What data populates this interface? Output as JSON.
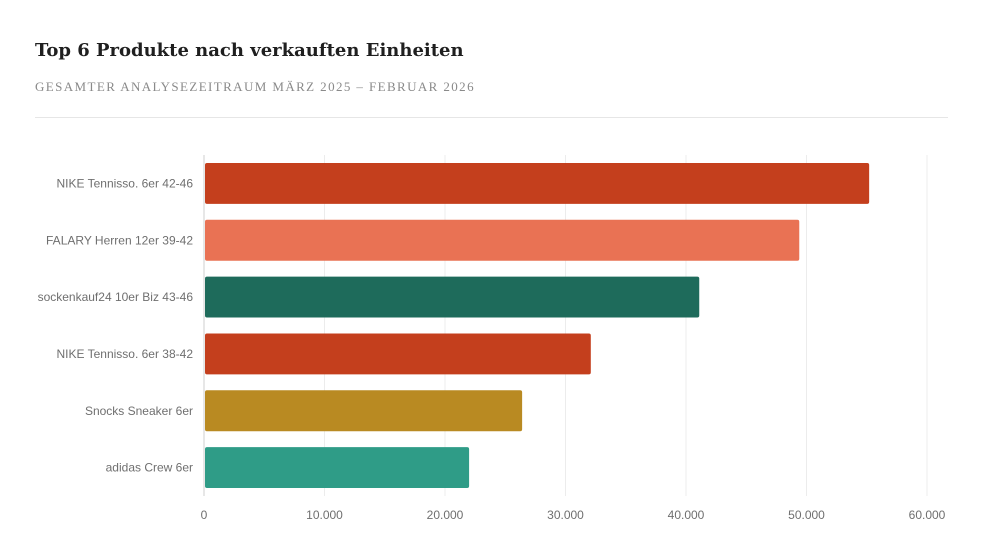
{
  "header": {
    "title": "Top 6 Produkte nach verkauften Einheiten",
    "subtitle": "Gesamter Analysezeitraum März 2025 – Februar 2026"
  },
  "chart_data": {
    "type": "bar",
    "orientation": "horizontal",
    "title": "Top 6 Produkte nach verkauften Einheiten",
    "subtitle": "Gesamter Analysezeitraum März 2025 – Februar 2026",
    "categories": [
      "NIKE Tennisso. 6er 42-46",
      "FALARY Herren 12er 39-42",
      "sockenkauf24 10er Biz 43-46",
      "NIKE Tennisso. 6er 38-42",
      "Snocks Sneaker 6er",
      "adidas Crew 6er"
    ],
    "values": [
      55200,
      49400,
      41100,
      32100,
      26400,
      22000
    ],
    "colors": [
      "#c43f1d",
      "#e97254",
      "#1e6b5b",
      "#c43f1d",
      "#b98a22",
      "#2f9c87"
    ],
    "xlim": [
      0,
      60000
    ],
    "xticks": [
      0,
      10000,
      20000,
      30000,
      40000,
      50000,
      60000
    ],
    "xtick_labels": [
      "0",
      "10.000",
      "20.000",
      "30.000",
      "40.000",
      "50.000",
      "60.000"
    ],
    "grid": "vertical",
    "legend": "none"
  }
}
